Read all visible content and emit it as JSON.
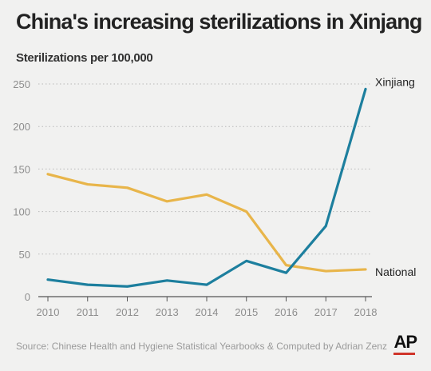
{
  "header": {
    "title": "China's increasing sterilizations in Xinjang",
    "subtitle": "Sterilizations per 100,000"
  },
  "footer": {
    "source": "Source: Chinese Health and Hygiene Statistical Yearbooks & Computed by Adrian Zenz",
    "logo_text": "AP"
  },
  "chart_data": {
    "type": "line",
    "title": "China's increasing sterilizations in Xinjang",
    "subtitle": "Sterilizations per 100,000",
    "x": [
      "2010",
      "2011",
      "2012",
      "2013",
      "2014",
      "2015",
      "2016",
      "2017",
      "2018"
    ],
    "yticks": [
      "0",
      "50",
      "100",
      "150",
      "200",
      "250"
    ],
    "ylim": [
      0,
      250
    ],
    "grid": true,
    "series": [
      {
        "name": "Xinjiang",
        "color": "#1d7f9e",
        "values": [
          20,
          14,
          12,
          19,
          14,
          42,
          28,
          83,
          244
        ]
      },
      {
        "name": "National",
        "color": "#e8b54a",
        "values": [
          144,
          132,
          128,
          112,
          120,
          100,
          37,
          30,
          32
        ]
      }
    ]
  }
}
